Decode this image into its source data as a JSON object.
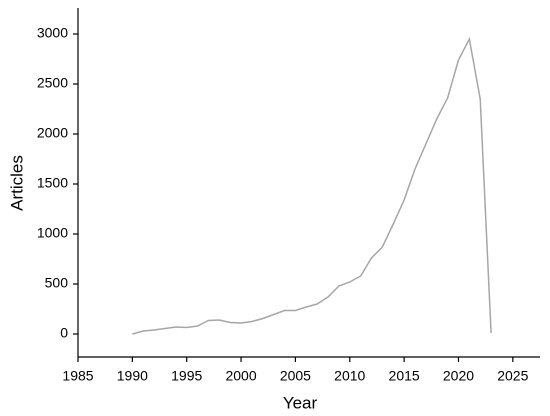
{
  "chart_data": {
    "type": "line",
    "x_label": "Year",
    "y_label": "Articles",
    "x": [
      1990,
      1991,
      1992,
      1993,
      1994,
      1995,
      1996,
      1997,
      1998,
      1999,
      2000,
      2001,
      2002,
      2003,
      2004,
      2005,
      2006,
      2007,
      2008,
      2009,
      2010,
      2011,
      2012,
      2013,
      2014,
      2015,
      2016,
      2017,
      2018,
      2019,
      2020,
      2021,
      2022,
      2023
    ],
    "values": [
      0,
      30,
      40,
      55,
      70,
      65,
      80,
      135,
      140,
      115,
      110,
      125,
      155,
      195,
      235,
      235,
      270,
      300,
      370,
      480,
      520,
      580,
      760,
      870,
      1100,
      1340,
      1650,
      1900,
      2150,
      2360,
      2740,
      2950,
      2350,
      10
    ],
    "color": "#a6a6a6",
    "xlim": [
      1985,
      2027.5
    ],
    "xticks": [
      1985,
      1990,
      1995,
      2000,
      2005,
      2010,
      2015,
      2020,
      2025
    ],
    "ylim": [
      -230,
      3260
    ],
    "yticks": [
      0,
      500,
      1000,
      1500,
      2000,
      2500,
      3000
    ]
  }
}
